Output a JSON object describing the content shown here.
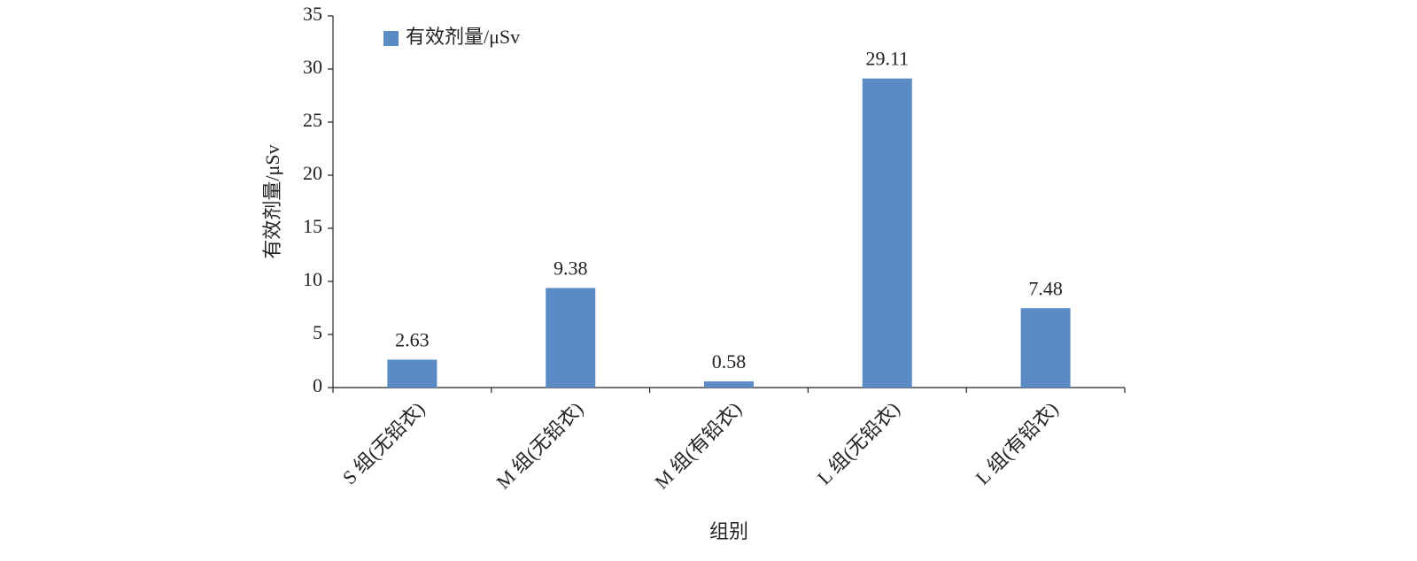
{
  "chart_data": {
    "type": "bar",
    "y_label": "有效剂量/μSv",
    "x_label": "组别",
    "categories": [
      "S 组(无铅衣)",
      "M 组(无铅衣)",
      "M 组(有铅衣)",
      "L 组(无铅衣)",
      "L 组(有铅衣)"
    ],
    "series": [
      {
        "name": "有效剂量/μSv",
        "color": "#5b8bc5",
        "values": [
          2.63,
          9.38,
          0.58,
          29.11,
          7.48
        ]
      }
    ],
    "ylim": [
      0,
      35
    ],
    "yticks": [
      0,
      5,
      10,
      15,
      20,
      25,
      30,
      35
    ],
    "legend": "upper left",
    "data_labels": true,
    "grid": false
  }
}
